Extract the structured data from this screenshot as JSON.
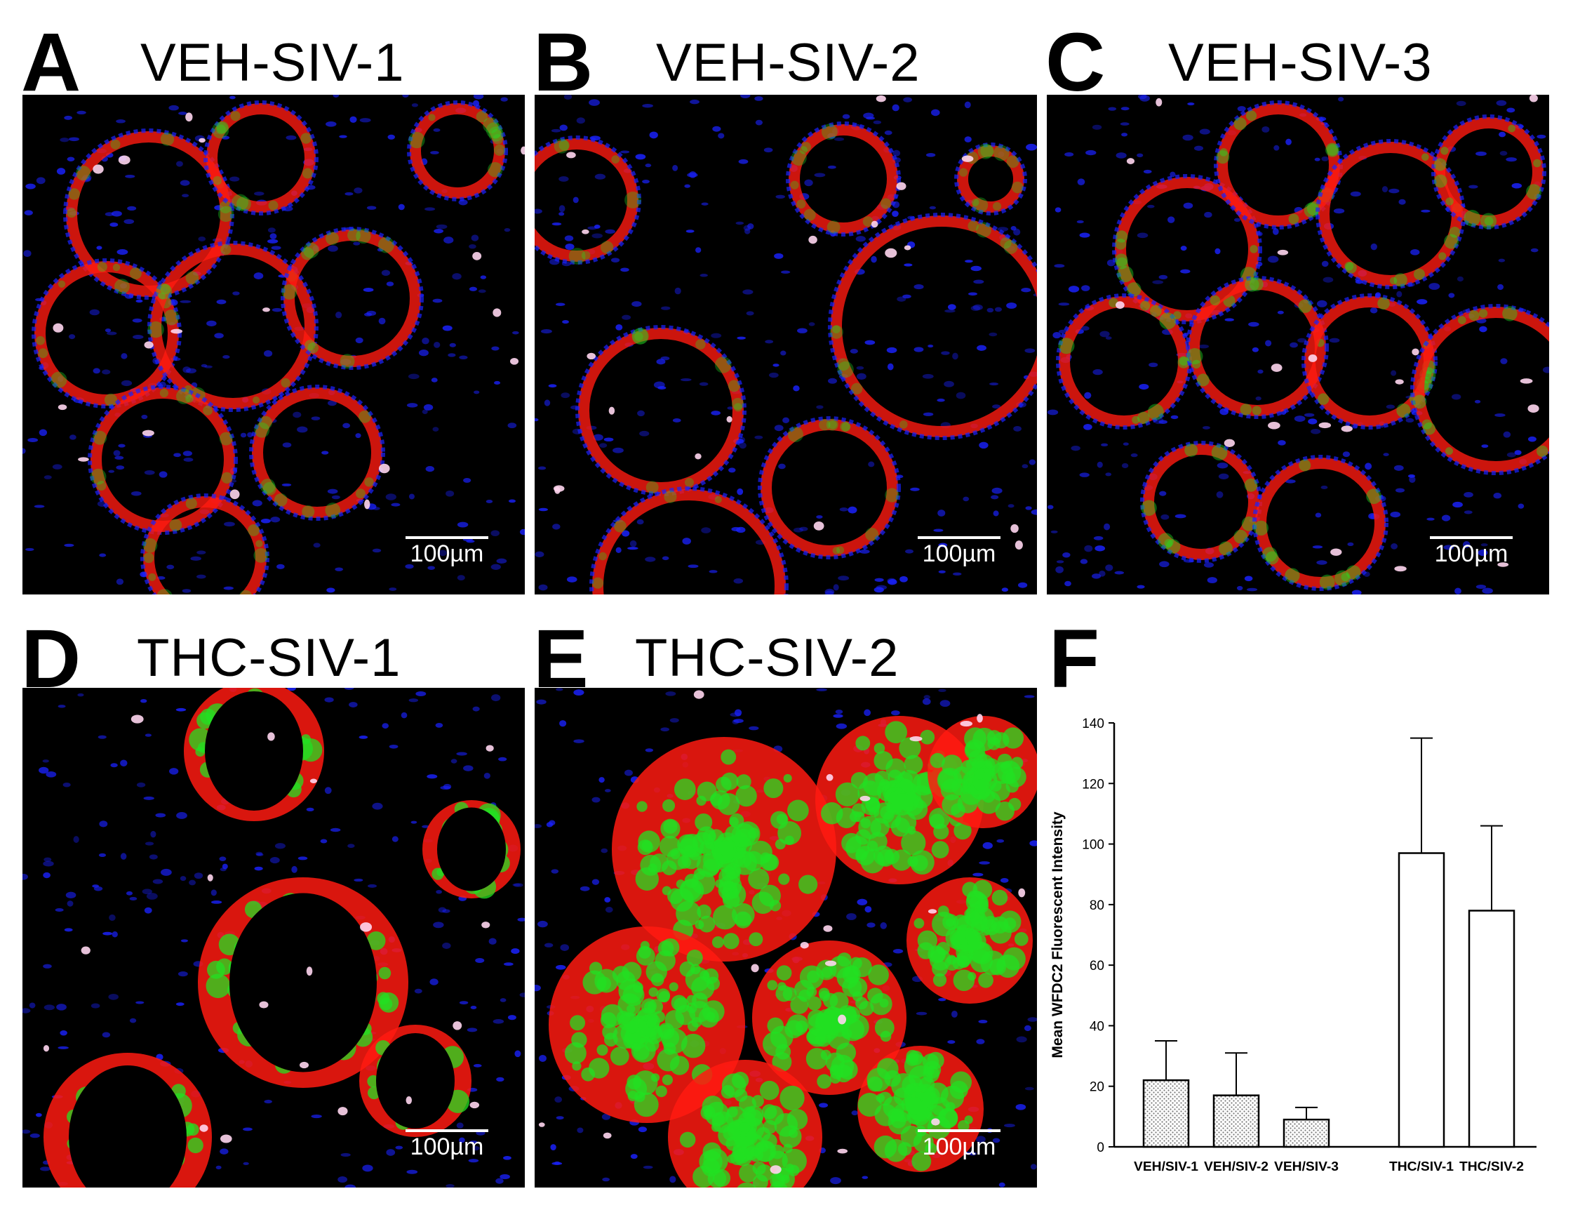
{
  "panels": [
    {
      "letter": "A",
      "title": "VEH-SIV-1",
      "scale": "100µm"
    },
    {
      "letter": "B",
      "title": "VEH-SIV-2",
      "scale": "100µm"
    },
    {
      "letter": "C",
      "title": "VEH-SIV-3",
      "scale": "100µm"
    },
    {
      "letter": "D",
      "title": "THC-SIV-1",
      "scale": "100µm"
    },
    {
      "letter": "E",
      "title": "THC-SIV-2",
      "scale": "100µm"
    }
  ],
  "chart_panel_letter": "F",
  "colors": {
    "nuclei": "#1a22ff",
    "red_stain": "#ff1a10",
    "green_stain": "#22e022",
    "background": "#000000"
  },
  "chart_data": {
    "type": "bar",
    "categories": [
      "VEH/SIV-1",
      "VEH/SIV-2",
      "VEH/SIV-3",
      "THC/SIV-1",
      "THC/SIV-2"
    ],
    "values": [
      22,
      17,
      9,
      97,
      78
    ],
    "errors": [
      13,
      14,
      4,
      38,
      28
    ],
    "fills": [
      "hatched",
      "hatched",
      "hatched",
      "open",
      "open"
    ],
    "title": "",
    "xlabel": "",
    "ylabel": "Mean WFDC2 Fluorescent Intensity",
    "ylim": [
      0,
      140
    ],
    "yticks": [
      0,
      20,
      40,
      60,
      80,
      100,
      120,
      140
    ],
    "grid": false
  }
}
